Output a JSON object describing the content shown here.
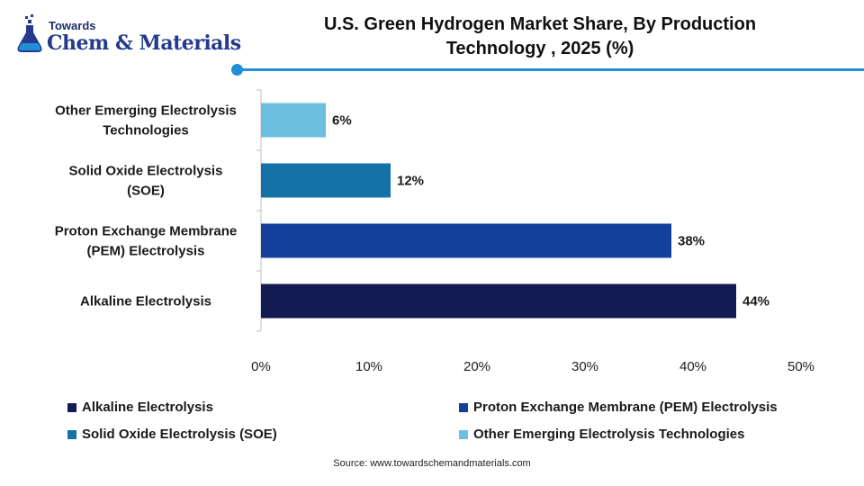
{
  "brand": {
    "small": "Towards",
    "big": "Chem & Materials",
    "icon": "flask-icon",
    "color": "#243a8c"
  },
  "title_line1": "U.S. Green Hydrogen Market Share, By Production",
  "title_line2": "Technology , 2025 (%)",
  "accent_color": "#1f8fd6",
  "source": "Source: www.towardschemandmaterials.com",
  "chart_data": {
    "type": "bar",
    "orientation": "horizontal",
    "title": "U.S. Green Hydrogen Market Share, By Production Technology , 2025 (%)",
    "categories": [
      [
        "Other Emerging Electrolysis",
        "Technologies"
      ],
      [
        "Solid Oxide Electrolysis",
        "(SOE)"
      ],
      [
        "Proton Exchange Membrane",
        "(PEM) Electrolysis"
      ],
      [
        "Alkaline Electrolysis"
      ]
    ],
    "values": [
      6,
      12,
      38,
      44
    ],
    "value_labels": [
      "6%",
      "12%",
      "38%",
      "44%"
    ],
    "colors": [
      "#6cbfde",
      "#1572a6",
      "#15409a",
      "#141b52"
    ],
    "xlim": [
      0,
      50
    ],
    "xticks": [
      0,
      10,
      20,
      30,
      40,
      50
    ],
    "xtick_labels": [
      "0%",
      "10%",
      "20%",
      "30%",
      "40%",
      "50%"
    ],
    "grid": false,
    "legend_position": "bottom",
    "legend": [
      {
        "label": "Alkaline Electrolysis",
        "color": "#141b52"
      },
      {
        "label": "Proton Exchange Membrane (PEM) Electrolysis",
        "color": "#15409a"
      },
      {
        "label": "Solid Oxide Electrolysis (SOE)",
        "color": "#1572a6"
      },
      {
        "label": "Other Emerging Electrolysis Technologies",
        "color": "#6cbfde"
      }
    ]
  }
}
